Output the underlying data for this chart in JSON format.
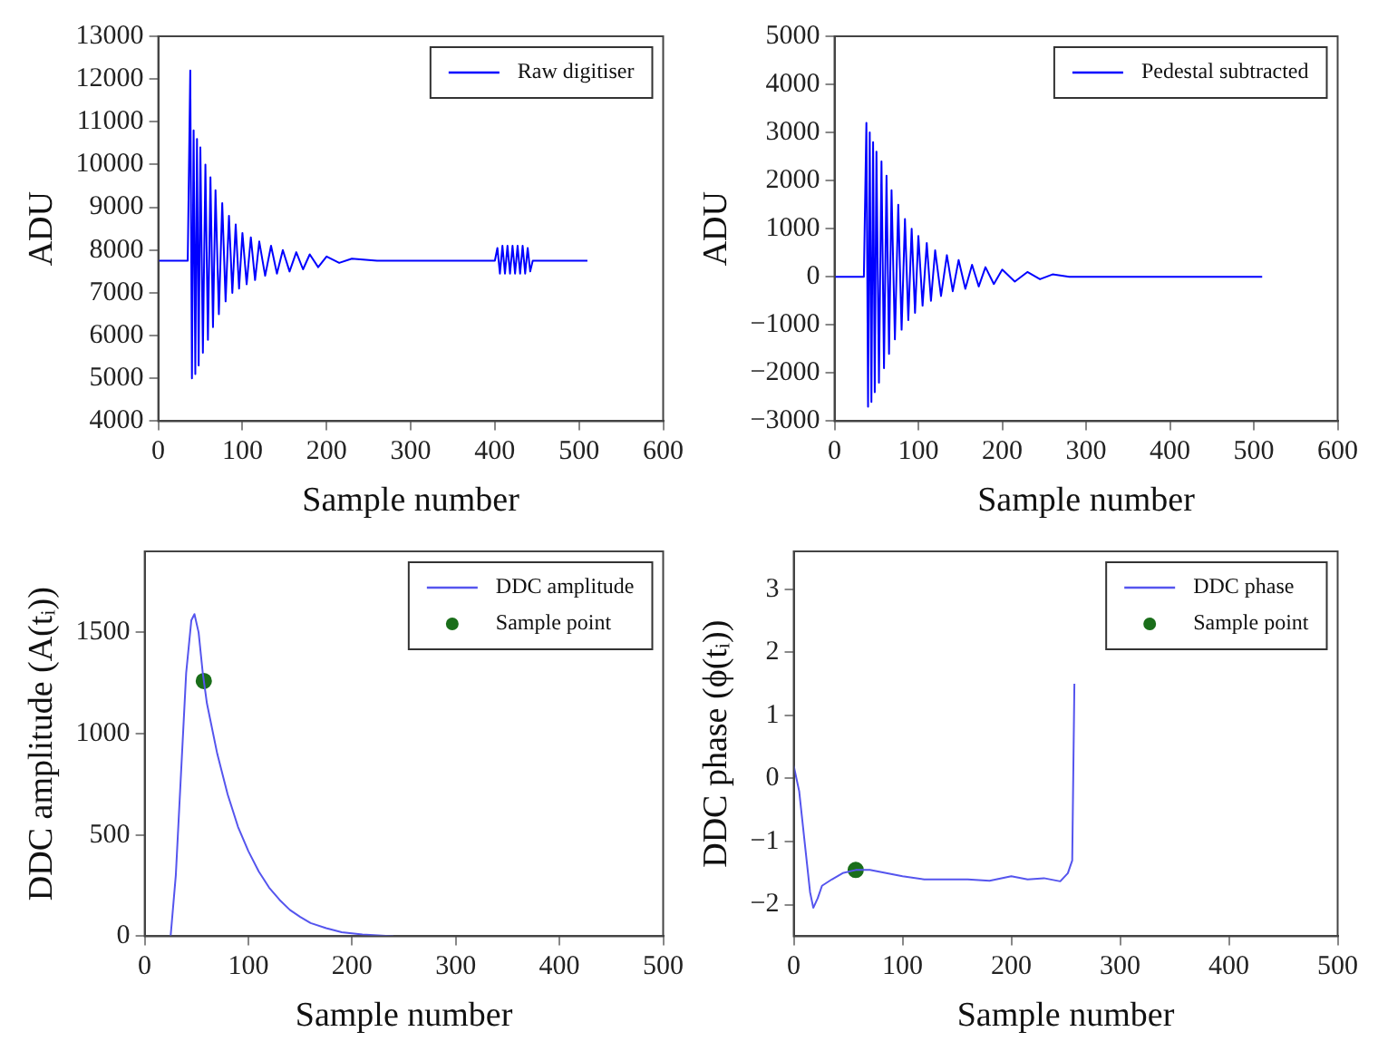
{
  "chart_data": [
    {
      "type": "line",
      "xlabel": "Sample number",
      "ylabel": "ADU",
      "xlim": [
        0,
        600
      ],
      "xticks": [
        0,
        100,
        200,
        300,
        400,
        500,
        600
      ],
      "ylim": [
        4000,
        13000
      ],
      "yticks": [
        4000,
        5000,
        6000,
        7000,
        8000,
        9000,
        10000,
        11000,
        12000,
        13000
      ],
      "grid": false,
      "legend": "top right",
      "series": [
        {
          "name": "Raw digitiser",
          "color": "#0000ff",
          "x": [
            0,
            35,
            38,
            40,
            42,
            44,
            46,
            48,
            50,
            53,
            56,
            59,
            62,
            65,
            68,
            72,
            76,
            80,
            84,
            88,
            92,
            96,
            100,
            105,
            110,
            115,
            120,
            127,
            134,
            141,
            148,
            156,
            164,
            172,
            180,
            190,
            200,
            215,
            230,
            260,
            400,
            403,
            406,
            409,
            412,
            415,
            418,
            421,
            424,
            427,
            430,
            433,
            436,
            439,
            442,
            445,
            510
          ],
          "values": [
            7750,
            7750,
            12200,
            5000,
            10800,
            5100,
            10600,
            5300,
            10400,
            5600,
            10000,
            5900,
            9700,
            6200,
            9400,
            6500,
            9100,
            6800,
            8800,
            7000,
            8600,
            7100,
            8400,
            7200,
            8300,
            7300,
            8200,
            7400,
            8100,
            7450,
            8000,
            7500,
            7950,
            7550,
            7900,
            7600,
            7850,
            7700,
            7800,
            7750,
            7750,
            8050,
            7450,
            8100,
            7450,
            8100,
            7450,
            8100,
            7450,
            8100,
            7450,
            8100,
            7450,
            8050,
            7500,
            7750,
            7750
          ]
        }
      ]
    },
    {
      "type": "line",
      "xlabel": "Sample number",
      "ylabel": "ADU",
      "xlim": [
        0,
        600
      ],
      "xticks": [
        0,
        100,
        200,
        300,
        400,
        500,
        600
      ],
      "ylim": [
        -3000,
        5000
      ],
      "yticks": [
        -3000,
        -2000,
        -1000,
        0,
        1000,
        2000,
        3000,
        4000,
        5000
      ],
      "grid": false,
      "legend": "top right",
      "series": [
        {
          "name": "Pedestal subtracted",
          "color": "#0000ff",
          "x": [
            0,
            35,
            38,
            40,
            42,
            44,
            46,
            48,
            50,
            53,
            56,
            59,
            62,
            65,
            68,
            72,
            76,
            80,
            84,
            88,
            92,
            96,
            100,
            105,
            110,
            115,
            120,
            127,
            134,
            141,
            148,
            156,
            164,
            172,
            180,
            190,
            200,
            215,
            230,
            245,
            260,
            280,
            510
          ],
          "values": [
            0,
            0,
            3200,
            -2700,
            3000,
            -2600,
            2800,
            -2400,
            2600,
            -2200,
            2400,
            -1900,
            2100,
            -1600,
            1800,
            -1300,
            1500,
            -1100,
            1200,
            -900,
            1000,
            -750,
            850,
            -600,
            700,
            -500,
            550,
            -400,
            450,
            -300,
            350,
            -250,
            250,
            -200,
            200,
            -150,
            150,
            -100,
            100,
            -50,
            50,
            0,
            0
          ]
        }
      ]
    },
    {
      "type": "line",
      "xlabel": "Sample number",
      "ylabel": "DDC amplitude (A(tᵢ))",
      "xlim": [
        0,
        500
      ],
      "xticks": [
        0,
        100,
        200,
        300,
        400,
        500
      ],
      "ylim": [
        0,
        1900
      ],
      "yticks": [
        0,
        500,
        1000,
        1500
      ],
      "grid": false,
      "legend": "top right",
      "series": [
        {
          "name": "DDC amplitude",
          "color": "#5555ee",
          "marker": "none",
          "x": [
            25,
            30,
            35,
            40,
            45,
            48,
            52,
            56,
            60,
            70,
            80,
            90,
            100,
            110,
            120,
            130,
            140,
            150,
            160,
            175,
            190,
            210,
            240
          ],
          "values": [
            0,
            300,
            800,
            1300,
            1560,
            1590,
            1500,
            1300,
            1150,
            900,
            700,
            540,
            420,
            320,
            240,
            180,
            130,
            95,
            65,
            40,
            20,
            8,
            0
          ]
        },
        {
          "name": "Sample point",
          "type": "scatter",
          "color": "#1a6e1a",
          "marker": "circle",
          "x": [
            57
          ],
          "values": [
            1260
          ]
        }
      ]
    },
    {
      "type": "line",
      "xlabel": "Sample number",
      "ylabel": "DDC phase (ϕ(tᵢ))",
      "xlim": [
        0,
        500
      ],
      "xticks": [
        0,
        100,
        200,
        300,
        400,
        500
      ],
      "ylim": [
        -2.5,
        3.6
      ],
      "yticks": [
        -2,
        -1,
        0,
        1,
        2,
        3
      ],
      "grid": false,
      "legend": "top right",
      "series": [
        {
          "name": "DDC phase",
          "color": "#5555ee",
          "marker": "none",
          "x": [
            0,
            5,
            10,
            15,
            18,
            22,
            26,
            35,
            45,
            57,
            70,
            85,
            100,
            120,
            140,
            160,
            180,
            200,
            215,
            230,
            245,
            252,
            256,
            258
          ],
          "values": [
            0.2,
            -0.2,
            -1.0,
            -1.8,
            -2.05,
            -1.9,
            -1.7,
            -1.6,
            -1.5,
            -1.45,
            -1.45,
            -1.5,
            -1.55,
            -1.6,
            -1.6,
            -1.6,
            -1.62,
            -1.55,
            -1.6,
            -1.58,
            -1.63,
            -1.5,
            -1.3,
            1.5
          ]
        },
        {
          "name": "Sample point",
          "type": "scatter",
          "color": "#1a6e1a",
          "marker": "circle",
          "x": [
            57
          ],
          "values": [
            -1.45
          ]
        }
      ]
    }
  ]
}
